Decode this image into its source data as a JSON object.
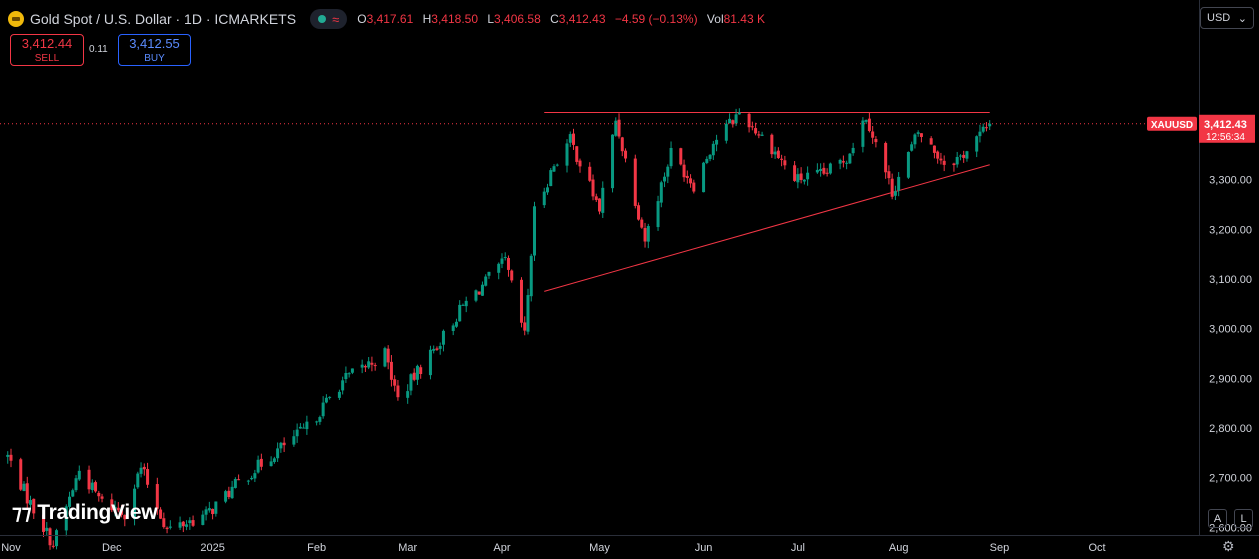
{
  "header": {
    "symbol_title": "Gold Spot / U.S. Dollar · 1D · ICMARKETS",
    "ohlc": [
      {
        "key": "O",
        "value": "3,417.61"
      },
      {
        "key": "H",
        "value": "3,418.50"
      },
      {
        "key": "L",
        "value": "3,406.58"
      },
      {
        "key": "C",
        "value": "3,412.43"
      },
      {
        "key": "",
        "value": "−4.59 (−0.13%)"
      },
      {
        "key": "Vol",
        "value": "81.43 K"
      }
    ]
  },
  "trade": {
    "sell_price": "3,412.44",
    "sell_label": "SELL",
    "spread": "0.11",
    "buy_price": "3,412.55",
    "buy_label": "BUY"
  },
  "currency_button": "USD",
  "branding": "TradingView",
  "scale_buttons": {
    "auto": "A",
    "log": "L"
  },
  "colors": {
    "up": "#089981",
    "down": "#f23645",
    "trendline": "#f23645",
    "price_label_bg": "#f23645"
  },
  "icons": [
    "symbol-logo-icon",
    "market-status-icon",
    "chevron-down-icon",
    "tradingview-logo-icon",
    "settings-gear-icon"
  ],
  "chart_data": {
    "type": "candlestick",
    "symbol": "XAUUSD",
    "last_price": "3,412.43",
    "countdown": "12:56:34",
    "ylim": [
      2540,
      3660
    ],
    "y_ticks": [
      2600,
      2700,
      2800,
      2900,
      3000,
      3100,
      3200,
      3300
    ],
    "y_tick_labels": [
      "2,600.00",
      "2,700.00",
      "2,800.00",
      "2,900.00",
      "3,000.00",
      "3,100.00",
      "3,200.00",
      "3,300.00"
    ],
    "x_tick_labels": [
      {
        "label": "Nov",
        "date": "2024-11-01"
      },
      {
        "label": "Dec",
        "date": "2024-12-02"
      },
      {
        "label": "2025",
        "date": "2025-01-02"
      },
      {
        "label": "Feb",
        "date": "2025-02-03"
      },
      {
        "label": "Mar",
        "date": "2025-03-03"
      },
      {
        "label": "Apr",
        "date": "2025-04-01"
      },
      {
        "label": "May",
        "date": "2025-05-01"
      },
      {
        "label": "Jun",
        "date": "2025-06-02"
      },
      {
        "label": "Jul",
        "date": "2025-07-01"
      },
      {
        "label": "Aug",
        "date": "2025-08-01"
      },
      {
        "label": "Sep",
        "date": "2025-09-01"
      },
      {
        "label": "Oct",
        "date": "2025-10-01"
      }
    ],
    "trendlines": [
      {
        "name": "resistance",
        "start": [
          "2025-04-14",
          3435
        ],
        "end": [
          "2025-08-29",
          3435
        ]
      },
      {
        "name": "support",
        "start": [
          "2025-04-14",
          3075
        ],
        "end": [
          "2025-08-29",
          3330
        ]
      }
    ],
    "close_series": [
      {
        "date": "2024-10-31",
        "close": 2743
      },
      {
        "date": "2024-11-06",
        "close": 2660
      },
      {
        "date": "2024-11-14",
        "close": 2565
      },
      {
        "date": "2024-11-22",
        "close": 2715
      },
      {
        "date": "2024-11-29",
        "close": 2650
      },
      {
        "date": "2024-12-06",
        "close": 2630
      },
      {
        "date": "2024-12-11",
        "close": 2720
      },
      {
        "date": "2024-12-19",
        "close": 2595
      },
      {
        "date": "2024-12-31",
        "close": 2625
      },
      {
        "date": "2025-01-10",
        "close": 2690
      },
      {
        "date": "2025-01-22",
        "close": 2755
      },
      {
        "date": "2025-01-31",
        "close": 2800
      },
      {
        "date": "2025-02-11",
        "close": 2895
      },
      {
        "date": "2025-02-24",
        "close": 2950
      },
      {
        "date": "2025-02-28",
        "close": 2858
      },
      {
        "date": "2025-03-14",
        "close": 2985
      },
      {
        "date": "2025-03-20",
        "close": 3045
      },
      {
        "date": "2025-04-02",
        "close": 3135
      },
      {
        "date": "2025-04-08",
        "close": 2985
      },
      {
        "date": "2025-04-11",
        "close": 3235
      },
      {
        "date": "2025-04-17",
        "close": 3330
      },
      {
        "date": "2025-04-22",
        "close": 3380
      },
      {
        "date": "2025-05-01",
        "close": 3240
      },
      {
        "date": "2025-05-06",
        "close": 3420
      },
      {
        "date": "2025-05-15",
        "close": 3180
      },
      {
        "date": "2025-05-23",
        "close": 3355
      },
      {
        "date": "2025-05-30",
        "close": 3290
      },
      {
        "date": "2025-06-05",
        "close": 3375
      },
      {
        "date": "2025-06-13",
        "close": 3435
      },
      {
        "date": "2025-06-23",
        "close": 3365
      },
      {
        "date": "2025-06-30",
        "close": 3300
      },
      {
        "date": "2025-07-09",
        "close": 3310
      },
      {
        "date": "2025-07-16",
        "close": 3345
      },
      {
        "date": "2025-07-22",
        "close": 3430
      },
      {
        "date": "2025-07-30",
        "close": 3275
      },
      {
        "date": "2025-08-07",
        "close": 3395
      },
      {
        "date": "2025-08-15",
        "close": 3335
      },
      {
        "date": "2025-08-20",
        "close": 3345
      },
      {
        "date": "2025-08-29",
        "close": 3412
      }
    ]
  }
}
